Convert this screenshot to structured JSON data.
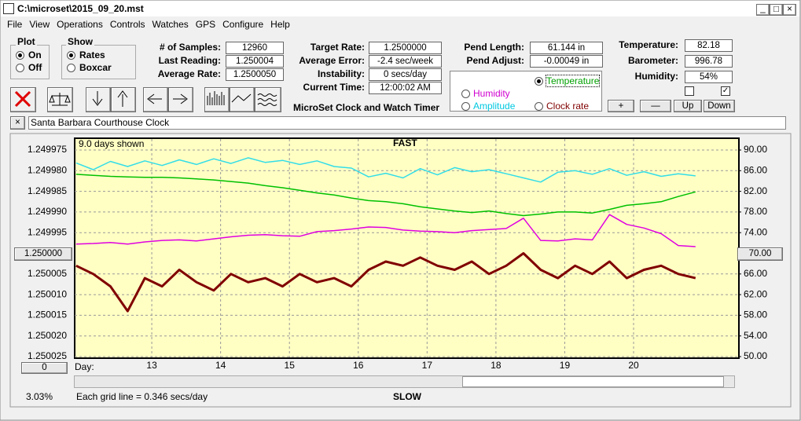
{
  "title_bar": "C:\\microset\\2015_09_20.mst",
  "menu": [
    "File",
    "View",
    "Operations",
    "Controls",
    "Watches",
    "GPS",
    "Configure",
    "Help"
  ],
  "plot_group": {
    "title": "Plot",
    "options": [
      {
        "label": "On",
        "checked": true
      },
      {
        "label": "Off",
        "checked": false
      }
    ]
  },
  "show_group": {
    "title": "Show",
    "options": [
      {
        "label": "Rates",
        "checked": true
      },
      {
        "label": "Boxcar",
        "checked": false
      }
    ]
  },
  "fields": [
    {
      "label": "# of Samples:",
      "value": "12960"
    },
    {
      "label": "Last Reading:",
      "value": "1.250004"
    },
    {
      "label": "Average Rate:",
      "value": "1.2500050"
    },
    {
      "label": "Target Rate:",
      "value": "1.2500000"
    },
    {
      "label": "Average Error:",
      "value": "-2.4 sec/week"
    },
    {
      "label": "Instability:",
      "value": "0 secs/day"
    },
    {
      "label": "Current Time:",
      "value": "12:00:02 AM"
    },
    {
      "label": "Pend Length:",
      "value": "61.144 in"
    },
    {
      "label": "Pend Adjust:",
      "value": "-0.00049 in"
    },
    {
      "label": "Temperature:",
      "value": "82.18"
    },
    {
      "label": "Barometer:",
      "value": "996.78"
    },
    {
      "label": "Humidity:",
      "value": "54%"
    }
  ],
  "app_name": "MicroSet Clock and Watch Timer",
  "legend_options": [
    {
      "label": "Temperature",
      "color": "#00a000",
      "checked": true
    },
    {
      "label": "Humidity",
      "color": "#d000d0",
      "checked": false
    },
    {
      "label": "Amplitude",
      "color": "#00c8e0",
      "checked": false
    },
    {
      "label": "Clock rate",
      "color": "#800000",
      "checked": false
    }
  ],
  "adjust_buttons": [
    "+",
    "—",
    "Up",
    "Down"
  ],
  "clock_name": "Santa Barbara Courthouse Clock",
  "chart_data": {
    "type": "line",
    "days_shown": "9.0 days shown",
    "top_label": "FAST",
    "bottom_label": "SLOW",
    "x_label": "Day:",
    "grid_note": "Each grid line = 0.346 secs/day",
    "percent": "3.03%",
    "left_button": "1.250000",
    "right_button": "70.00",
    "bottom_button": "0",
    "xlim": [
      11.88,
      21.53
    ],
    "xticks": [
      13,
      14,
      15,
      16,
      17,
      18,
      19,
      20
    ],
    "ylim": [
      1.250025,
      1.249975
    ],
    "yticks": [
      {
        "value": 1.249975,
        "label": "1.249975"
      },
      {
        "value": 1.24998,
        "label": "1.249980"
      },
      {
        "value": 1.249985,
        "label": "1.249985"
      },
      {
        "value": 1.24999,
        "label": "1.249990"
      },
      {
        "value": 1.249995,
        "label": "1.249995"
      },
      {
        "value": 1.250005,
        "label": "1.250005"
      },
      {
        "value": 1.25001,
        "label": "1.250010"
      },
      {
        "value": 1.250015,
        "label": "1.250015"
      },
      {
        "value": 1.25002,
        "label": "1.250020"
      },
      {
        "value": 1.250025,
        "label": "1.250025"
      }
    ],
    "y2lim": [
      50,
      90
    ],
    "y2ticks": [
      {
        "value": 90,
        "label": "90.00"
      },
      {
        "value": 86,
        "label": "86.00"
      },
      {
        "value": 82,
        "label": "82.00"
      },
      {
        "value": 78,
        "label": "78.00"
      },
      {
        "value": 74,
        "label": "74.00"
      },
      {
        "value": 66,
        "label": "66.00"
      },
      {
        "value": 62,
        "label": "62.00"
      },
      {
        "value": 58,
        "label": "58.00"
      },
      {
        "value": 54,
        "label": "54.00"
      },
      {
        "value": 50,
        "label": "50.00"
      }
    ],
    "grid": true,
    "x": [
      11.9,
      12.15,
      12.4,
      12.65,
      12.9,
      13.15,
      13.4,
      13.65,
      13.9,
      14.15,
      14.4,
      14.65,
      14.9,
      15.15,
      15.4,
      15.65,
      15.9,
      16.15,
      16.4,
      16.65,
      16.9,
      17.15,
      17.4,
      17.65,
      17.9,
      18.15,
      18.4,
      18.65,
      18.9,
      19.15,
      19.4,
      19.65,
      19.9,
      20.15,
      20.4,
      20.65,
      20.9
    ],
    "series": [
      {
        "color": "#33dde8",
        "axis": "y2",
        "values": [
          87.5,
          86.2,
          87.8,
          86.8,
          87.9,
          87.0,
          88.1,
          87.2,
          88.3,
          87.4,
          88.5,
          87.6,
          88.0,
          87.2,
          87.9,
          86.8,
          86.5,
          84.8,
          85.5,
          84.6,
          86.4,
          85.2,
          86.6,
          85.8,
          86.2,
          85.4,
          84.6,
          83.8,
          85.7,
          86.0,
          85.3,
          86.4,
          85.1,
          85.8,
          84.9,
          85.4,
          85.0
        ]
      },
      {
        "color": "#00c000",
        "axis": "y2",
        "values": [
          85.3,
          85.1,
          84.9,
          84.8,
          84.7,
          84.7,
          84.6,
          84.4,
          84.2,
          83.9,
          83.6,
          83.1,
          82.7,
          82.2,
          81.7,
          81.3,
          80.7,
          80.2,
          80.0,
          79.6,
          79.0,
          78.6,
          78.2,
          77.9,
          78.2,
          77.7,
          77.3,
          77.6,
          78.0,
          78.0,
          77.8,
          78.5,
          79.3,
          79.6,
          80.0,
          81.0,
          81.9
        ]
      },
      {
        "color": "#e000e0",
        "axis": "y2",
        "values": [
          71.8,
          71.9,
          72.1,
          71.8,
          72.2,
          72.5,
          72.6,
          72.4,
          72.8,
          73.2,
          73.5,
          73.6,
          73.4,
          73.3,
          74.2,
          74.4,
          74.7,
          75.1,
          75.0,
          74.5,
          74.3,
          74.2,
          74.0,
          74.4,
          74.6,
          74.8,
          76.8,
          72.5,
          72.4,
          72.8,
          72.6,
          77.5,
          75.6,
          74.9,
          73.8,
          71.5,
          71.3
        ]
      },
      {
        "color": "#800000",
        "axis": "y",
        "values": [
          1.250003,
          1.250005,
          1.250008,
          1.250014,
          1.250006,
          1.250008,
          1.250004,
          1.250007,
          1.250009,
          1.250005,
          1.250007,
          1.250006,
          1.250008,
          1.250005,
          1.250007,
          1.250006,
          1.250008,
          1.250004,
          1.250002,
          1.250003,
          1.250001,
          1.250003,
          1.250004,
          1.250002,
          1.250005,
          1.250003,
          1.25,
          1.250004,
          1.250006,
          1.250003,
          1.250005,
          1.250002,
          1.250006,
          1.250004,
          1.250003,
          1.250005,
          1.250006
        ]
      }
    ]
  }
}
